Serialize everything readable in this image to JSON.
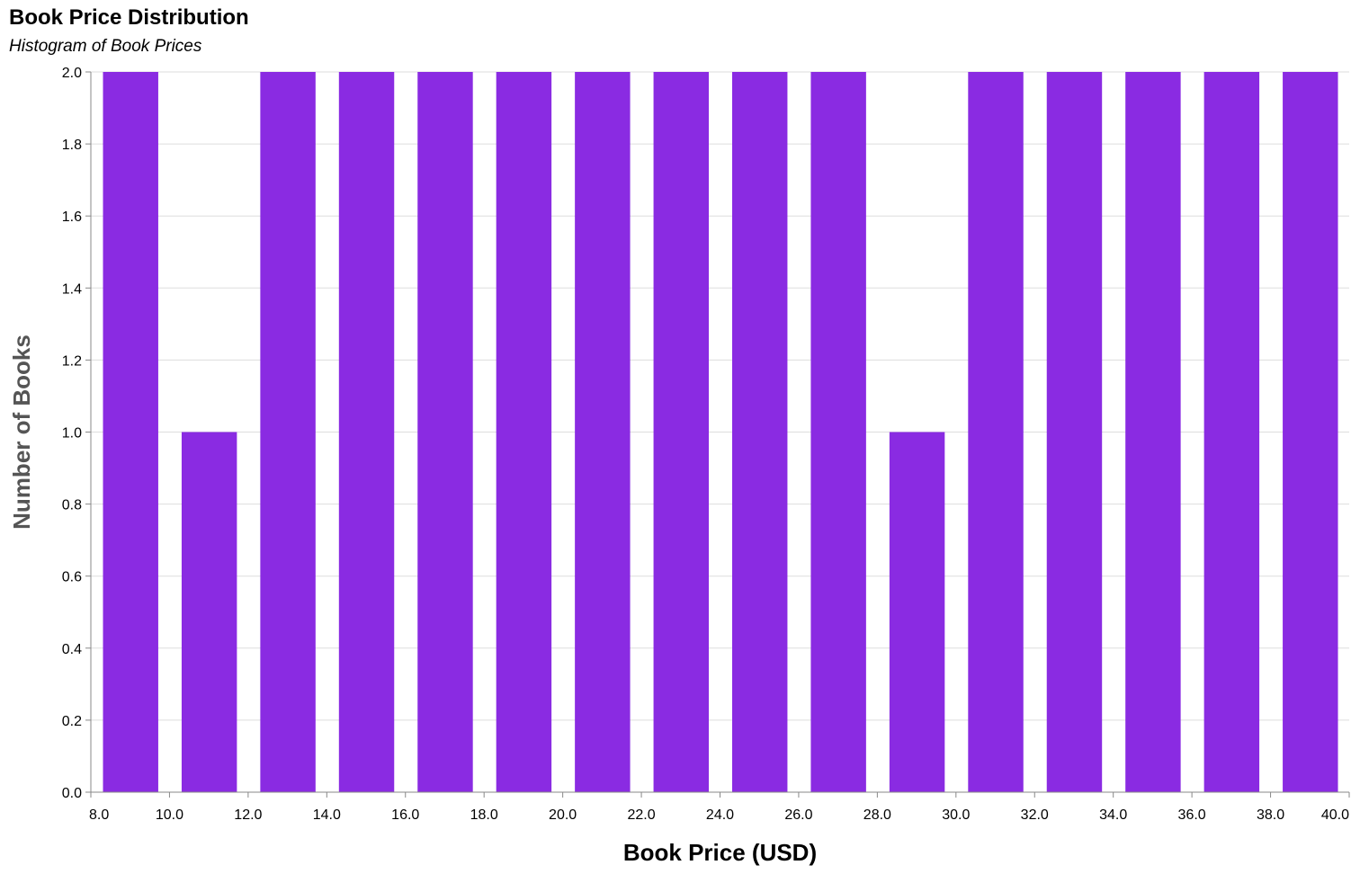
{
  "chart_data": {
    "type": "bar",
    "title": "Book Price Distribution",
    "subtitle": "Histogram of Book Prices",
    "xlabel": "Book Price (USD)",
    "ylabel": "Number of Books",
    "xlim": [
      8,
      40
    ],
    "ylim": [
      0,
      2
    ],
    "bin_width": 2,
    "bins": [
      {
        "start": 8,
        "end": 10,
        "count": 2
      },
      {
        "start": 10,
        "end": 12,
        "count": 1
      },
      {
        "start": 12,
        "end": 14,
        "count": 2
      },
      {
        "start": 14,
        "end": 16,
        "count": 2
      },
      {
        "start": 16,
        "end": 18,
        "count": 2
      },
      {
        "start": 18,
        "end": 20,
        "count": 2
      },
      {
        "start": 20,
        "end": 22,
        "count": 2
      },
      {
        "start": 22,
        "end": 24,
        "count": 2
      },
      {
        "start": 24,
        "end": 26,
        "count": 2
      },
      {
        "start": 26,
        "end": 28,
        "count": 2
      },
      {
        "start": 28,
        "end": 30,
        "count": 1
      },
      {
        "start": 30,
        "end": 32,
        "count": 2
      },
      {
        "start": 32,
        "end": 34,
        "count": 2
      },
      {
        "start": 34,
        "end": 36,
        "count": 2
      },
      {
        "start": 36,
        "end": 38,
        "count": 2
      },
      {
        "start": 38,
        "end": 40,
        "count": 2
      }
    ],
    "x_ticks": [
      "8.0",
      "10.0",
      "12.0",
      "14.0",
      "16.0",
      "18.0",
      "20.0",
      "22.0",
      "24.0",
      "26.0",
      "28.0",
      "30.0",
      "32.0",
      "34.0",
      "36.0",
      "38.0",
      "40.0"
    ],
    "y_ticks": [
      "0.0",
      "0.2",
      "0.4",
      "0.6",
      "0.8",
      "1.0",
      "1.2",
      "1.4",
      "1.6",
      "1.8",
      "2.0"
    ],
    "grid": true,
    "colors": {
      "bar": "#8a2be2",
      "grid": "#dddddd",
      "axis": "#888888",
      "ylabel": "#555555",
      "xlabel": "#000000"
    }
  }
}
